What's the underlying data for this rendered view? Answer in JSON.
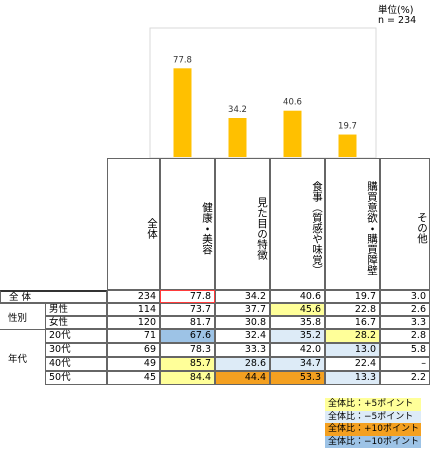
{
  "unit": "単位(%)",
  "n": "n = 234",
  "chart_data": {
    "type": "bar",
    "values": [
      77.8,
      34.2,
      40.6,
      19.7
    ],
    "color": "#ffc000"
  },
  "table": {
    "columns": [
      "全体",
      "健康・美容",
      "見た目の特徴",
      "食事（質感や味覚）",
      "購買意欲・購買障壁",
      "その他"
    ],
    "total": {
      "label": "全 体",
      "values": [
        "234",
        "77.8",
        "34.2",
        "40.6",
        "19.7",
        "3.0"
      ],
      "borders": [
        null,
        "#ff3b3b",
        null,
        null,
        null,
        null
      ]
    },
    "groups": [
      {
        "label": "性別",
        "rows": [
          {
            "label": "男性",
            "values": [
              "114",
              "73.7",
              "37.7",
              "45.6",
              "22.8",
              "2.6"
            ],
            "fills": [
              null,
              null,
              null,
              "#ffff99",
              null,
              null
            ]
          },
          {
            "label": "女性",
            "values": [
              "120",
              "81.7",
              "30.8",
              "35.8",
              "16.7",
              "3.3"
            ],
            "fills": [
              null,
              null,
              null,
              null,
              null,
              null
            ]
          }
        ]
      },
      {
        "label": "年代",
        "rows": [
          {
            "label": "20代",
            "values": [
              "71",
              "67.6",
              "32.4",
              "35.2",
              "28.2",
              "2.8"
            ],
            "fills": [
              null,
              "#9dc3e6",
              null,
              "#ddebf7",
              "#ffff99",
              null
            ]
          },
          {
            "label": "30代",
            "values": [
              "69",
              "78.3",
              "33.3",
              "42.0",
              "13.0",
              "5.8"
            ],
            "fills": [
              null,
              null,
              null,
              null,
              "#ddebf7",
              null
            ]
          },
          {
            "label": "40代",
            "values": [
              "49",
              "85.7",
              "28.6",
              "34.7",
              "22.4",
              "–"
            ],
            "fills": [
              null,
              "#ffff99",
              "#ddebf7",
              "#ddebf7",
              null,
              null
            ]
          },
          {
            "label": "50代",
            "values": [
              "45",
              "84.4",
              "44.4",
              "53.3",
              "13.3",
              "2.2"
            ],
            "fills": [
              null,
              "#ffff99",
              "#f4a020",
              "#f4a020",
              "#ddebf7",
              null
            ]
          }
        ]
      }
    ]
  },
  "legend": [
    {
      "label": "全体比：+5ポイント",
      "color": "#ffff99"
    },
    {
      "label": "全体比：−5ポイント",
      "color": "#ddebf7"
    },
    {
      "label": "全体比：+10ポイント",
      "color": "#f4a020"
    },
    {
      "label": "全体比：−10ポイント",
      "color": "#9dc3e6"
    }
  ]
}
